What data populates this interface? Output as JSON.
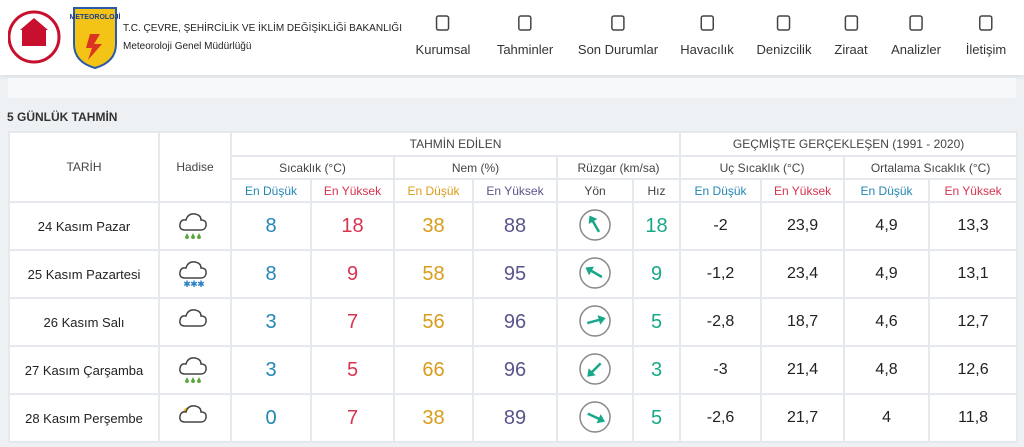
{
  "header": {
    "ministry": "T.C. ÇEVRE, ŞEHİRCİLİK VE İKLİM DEĞİŞİKLİĞİ BAKANLIĞI",
    "department": "Meteoroloji Genel Müdürlüğü",
    "logo_text": "METEOROLOJİ",
    "nav": [
      "Kurumsal",
      "Tahminler",
      "Son Durumlar",
      "Havacılık",
      "Denizcilik",
      "Ziraat",
      "Analizler",
      "İletişim"
    ]
  },
  "section_title": "5 GÜNLÜK TAHMİN",
  "table": {
    "date_header": "TARİH",
    "event_header": "Hadise",
    "forecast_header": "TAHMİN EDİLEN",
    "past_header": "GEÇMİŞTE GERÇEKLEŞEN (1991 - 2020)",
    "groups": [
      "Sıcaklık (°C)",
      "Nem (%)",
      "Rüzgar (km/sa)",
      "Uç Sıcaklık (°C)",
      "Ortalama Sıcaklık (°C)"
    ],
    "subheaders": [
      "En Düşük",
      "En Yüksek",
      "En Düşük",
      "En Yüksek",
      "Yön",
      "Hız",
      "En Düşük",
      "En Yüksek",
      "En Düşük",
      "En Yüksek"
    ],
    "rows": [
      {
        "date": "24 Kasım Pazar",
        "temp_min": 8,
        "temp_max": 18,
        "hum_min": 38,
        "hum_max": 88,
        "wind_dir": 330,
        "wind_speed": 18,
        "ext_min": -2,
        "ext_max": "23,9",
        "avg_min": "4,9",
        "avg_max": "13,3"
      },
      {
        "date": "25 Kasım Pazartesi",
        "temp_min": 8,
        "temp_max": 9,
        "hum_min": 58,
        "hum_max": 95,
        "wind_dir": 300,
        "wind_speed": 9,
        "ext_min": "-1,2",
        "ext_max": "23,4",
        "avg_min": "4,9",
        "avg_max": "13,1"
      },
      {
        "date": "26 Kasım Salı",
        "temp_min": 3,
        "temp_max": 7,
        "hum_min": 56,
        "hum_max": 96,
        "wind_dir": 75,
        "wind_speed": 5,
        "ext_min": "-2,8",
        "ext_max": "18,7",
        "avg_min": "4,6",
        "avg_max": "12,7"
      },
      {
        "date": "27 Kasım Çarşamba",
        "temp_min": 3,
        "temp_max": 5,
        "hum_min": 66,
        "hum_max": 96,
        "wind_dir": 225,
        "wind_speed": 3,
        "ext_min": -3,
        "ext_max": "21,4",
        "avg_min": "4,8",
        "avg_max": "12,6"
      },
      {
        "date": "28 Kasım Perşembe",
        "temp_min": 0,
        "temp_max": 7,
        "hum_min": 38,
        "hum_max": 89,
        "wind_dir": 115,
        "wind_speed": 5,
        "ext_min": "-2,6",
        "ext_max": "21,7",
        "avg_min": 4,
        "avg_max": "11,8"
      }
    ]
  }
}
